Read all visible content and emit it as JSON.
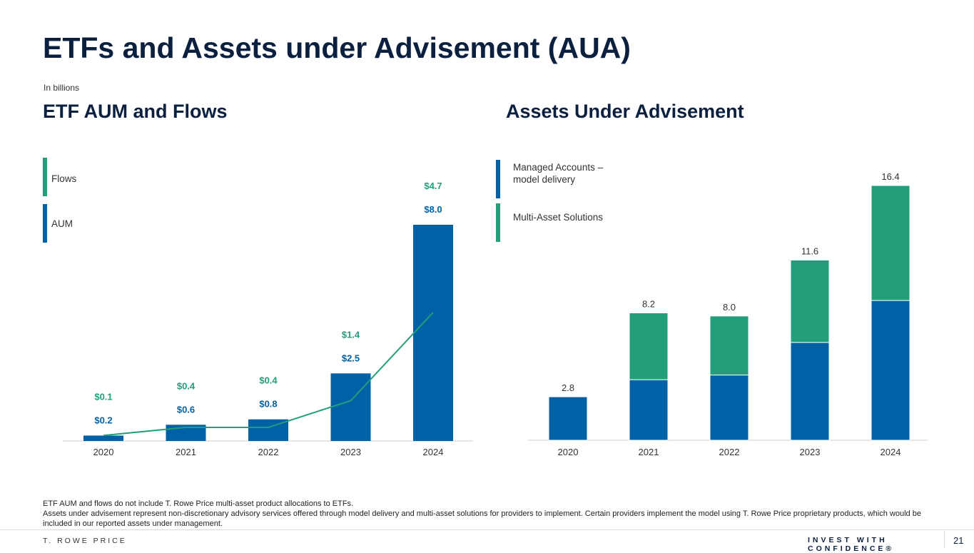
{
  "title": "ETFs and Assets under Advisement (AUA)",
  "unit_note": "In billions",
  "colors": {
    "blue": "#0061a7",
    "green": "#229e7a"
  },
  "chart_data": [
    {
      "type": "bar",
      "title": "ETF AUM and Flows",
      "categories": [
        "2020",
        "2021",
        "2022",
        "2023",
        "2024"
      ],
      "series": [
        {
          "name": "AUM",
          "kind": "bar",
          "values": [
            0.2,
            0.6,
            0.8,
            2.5,
            8.0
          ],
          "labels": [
            "$0.2",
            "$0.6",
            "$0.8",
            "$2.5",
            "$8.0"
          ]
        },
        {
          "name": "Flows",
          "kind": "line",
          "values": [
            0.1,
            0.4,
            0.4,
            1.4,
            4.7
          ],
          "labels": [
            "$0.1",
            "$0.4",
            "$0.4",
            "$1.4",
            "$4.7"
          ]
        }
      ],
      "legend": [
        "Flows",
        "AUM"
      ],
      "ylim": [
        0,
        8.0
      ]
    },
    {
      "type": "bar",
      "stacked": true,
      "title": "Assets Under Advisement",
      "categories": [
        "2020",
        "2021",
        "2022",
        "2023",
        "2024"
      ],
      "series": [
        {
          "name": "Managed Accounts – model delivery",
          "values": [
            2.8,
            3.9,
            4.2,
            6.3,
            9.0
          ]
        },
        {
          "name": "Multi-Asset Solutions",
          "values": [
            0,
            4.3,
            3.8,
            5.3,
            7.4
          ]
        }
      ],
      "totals": [
        "2.8",
        "8.2",
        "8.0",
        "11.6",
        "16.4"
      ],
      "legend": [
        "Managed Accounts –\nmodel delivery",
        "Multi-Asset Solutions"
      ],
      "ylim": [
        0,
        16.4
      ]
    }
  ],
  "legend_left": {
    "flows": "Flows",
    "aum": "AUM"
  },
  "legend_right": {
    "managed_1": "Managed Accounts –",
    "managed_2": "model delivery",
    "multi": "Multi-Asset Solutions"
  },
  "notes": [
    "ETF AUM and flows do not include T. Rowe Price multi-asset product allocations to ETFs.",
    "Assets under advisement represent non-discretionary advisory services offered through model delivery and multi-asset solutions for providers to implement.  Certain providers implement the model using T. Rowe Price proprietary products, which would be included in our reported assets under management."
  ],
  "footer": {
    "brand": "T. ROWE PRICE",
    "tagline": "INVEST WITH CONFIDENCE®",
    "page": "21"
  }
}
